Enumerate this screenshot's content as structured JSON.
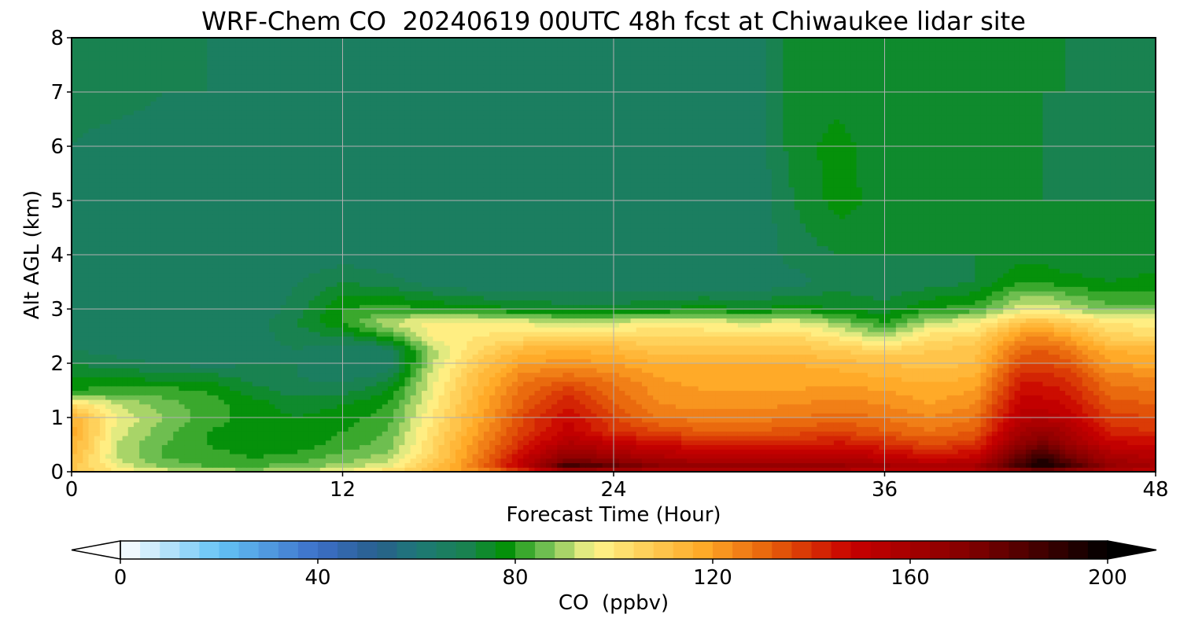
{
  "chart_data": {
    "type": "heatmap",
    "title": "WRF-Chem CO  20240619 00UTC 48h fcst at Chiwaukee lidar site",
    "xlabel": "Forecast Time (Hour)",
    "ylabel": "Alt AGL (km)",
    "xlim": [
      0,
      48
    ],
    "ylim": [
      0,
      8
    ],
    "xticks": [
      0,
      12,
      24,
      36,
      48
    ],
    "yticks": [
      0,
      1,
      2,
      3,
      4,
      5,
      6,
      7,
      8
    ],
    "grid": true,
    "colorbar": {
      "label": "CO  (ppbv)",
      "min": 0,
      "max": 200,
      "step": 4,
      "ticks": [
        0,
        40,
        80,
        120,
        160,
        200
      ],
      "extend": "both",
      "orientation": "horizontal"
    },
    "x": [
      0,
      2,
      4,
      6,
      8,
      10,
      12,
      14,
      16,
      18,
      20,
      22,
      24,
      26,
      28,
      30,
      32,
      34,
      36,
      38,
      40,
      42,
      43,
      44,
      46,
      48
    ],
    "y": [
      0,
      0.1,
      0.25,
      0.5,
      0.75,
      1.0,
      1.25,
      1.5,
      1.75,
      2.0,
      2.25,
      2.5,
      2.75,
      3.0,
      3.5,
      4.0,
      5.0,
      6.0,
      7.0,
      8.0
    ],
    "z": [
      [
        108,
        100,
        96,
        92,
        90,
        92,
        98,
        104,
        112,
        122,
        134,
        150,
        150,
        150,
        152,
        150,
        152,
        150,
        148,
        148,
        150,
        160,
        165,
        160,
        152,
        150
      ],
      [
        110,
        96,
        88,
        84,
        84,
        86,
        90,
        96,
        110,
        128,
        152,
        190,
        180,
        170,
        168,
        166,
        166,
        166,
        162,
        160,
        162,
        188,
        198,
        190,
        166,
        160
      ],
      [
        112,
        92,
        84,
        82,
        80,
        82,
        86,
        90,
        106,
        126,
        150,
        170,
        164,
        158,
        156,
        154,
        154,
        156,
        152,
        148,
        150,
        180,
        192,
        178,
        160,
        156
      ],
      [
        116,
        92,
        84,
        80,
        78,
        78,
        82,
        86,
        104,
        124,
        142,
        158,
        152,
        148,
        144,
        142,
        144,
        146,
        142,
        136,
        140,
        168,
        176,
        166,
        150,
        148
      ],
      [
        118,
        94,
        86,
        80,
        78,
        76,
        80,
        84,
        102,
        120,
        138,
        150,
        140,
        136,
        132,
        132,
        134,
        136,
        132,
        128,
        132,
        160,
        164,
        160,
        142,
        140
      ],
      [
        116,
        96,
        88,
        82,
        78,
        76,
        78,
        82,
        100,
        118,
        136,
        148,
        136,
        128,
        126,
        126,
        128,
        130,
        128,
        124,
        128,
        154,
        156,
        152,
        138,
        136
      ],
      [
        104,
        92,
        86,
        82,
        78,
        74,
        76,
        80,
        98,
        116,
        132,
        144,
        132,
        124,
        122,
        122,
        124,
        126,
        124,
        120,
        124,
        150,
        150,
        148,
        134,
        132
      ],
      [
        80,
        82,
        82,
        80,
        74,
        70,
        70,
        76,
        96,
        114,
        130,
        138,
        130,
        122,
        120,
        120,
        120,
        122,
        120,
        118,
        120,
        146,
        146,
        144,
        130,
        128
      ],
      [
        76,
        76,
        74,
        74,
        70,
        68,
        66,
        70,
        94,
        112,
        126,
        130,
        126,
        120,
        118,
        118,
        118,
        118,
        116,
        114,
        116,
        142,
        142,
        140,
        126,
        124
      ],
      [
        72,
        70,
        68,
        66,
        68,
        68,
        64,
        64,
        92,
        108,
        120,
        122,
        120,
        116,
        116,
        116,
        116,
        114,
        112,
        110,
        112,
        136,
        136,
        134,
        120,
        118
      ],
      [
        68,
        66,
        64,
        64,
        66,
        68,
        64,
        66,
        90,
        104,
        114,
        116,
        114,
        110,
        110,
        110,
        110,
        108,
        104,
        108,
        110,
        130,
        132,
        128,
        116,
        114
      ],
      [
        66,
        64,
        64,
        64,
        66,
        70,
        72,
        80,
        98,
        100,
        102,
        102,
        104,
        104,
        104,
        104,
        104,
        98,
        90,
        102,
        104,
        122,
        124,
        120,
        106,
        104
      ],
      [
        64,
        64,
        64,
        64,
        66,
        72,
        80,
        92,
        98,
        98,
        96,
        92,
        94,
        98,
        96,
        94,
        96,
        88,
        80,
        92,
        96,
        110,
        112,
        108,
        100,
        98
      ],
      [
        64,
        64,
        64,
        64,
        64,
        70,
        80,
        82,
        80,
        78,
        76,
        74,
        74,
        76,
        78,
        76,
        78,
        76,
        74,
        80,
        82,
        94,
        96,
        92,
        86,
        86
      ],
      [
        64,
        64,
        64,
        64,
        64,
        68,
        72,
        70,
        66,
        64,
        64,
        64,
        64,
        64,
        64,
        64,
        66,
        70,
        68,
        70,
        72,
        80,
        80,
        78,
        76,
        78
      ],
      [
        64,
        64,
        64,
        64,
        64,
        64,
        66,
        64,
        64,
        64,
        64,
        64,
        64,
        64,
        64,
        64,
        70,
        72,
        72,
        72,
        72,
        74,
        74,
        72,
        72,
        72
      ],
      [
        66,
        64,
        64,
        64,
        66,
        66,
        64,
        64,
        64,
        64,
        64,
        64,
        64,
        64,
        64,
        64,
        72,
        78,
        74,
        72,
        72,
        72,
        72,
        72,
        72,
        72
      ],
      [
        68,
        66,
        66,
        64,
        66,
        66,
        64,
        64,
        64,
        64,
        64,
        64,
        64,
        64,
        64,
        64,
        74,
        78,
        72,
        72,
        72,
        72,
        72,
        70,
        72,
        70
      ],
      [
        70,
        70,
        68,
        68,
        66,
        66,
        64,
        64,
        64,
        64,
        64,
        64,
        64,
        64,
        64,
        64,
        74,
        74,
        72,
        72,
        72,
        72,
        72,
        72,
        70,
        70
      ],
      [
        70,
        70,
        70,
        68,
        66,
        64,
        64,
        64,
        64,
        64,
        64,
        64,
        64,
        64,
        64,
        64,
        74,
        74,
        72,
        72,
        72,
        72,
        72,
        72,
        70,
        70
      ]
    ]
  }
}
